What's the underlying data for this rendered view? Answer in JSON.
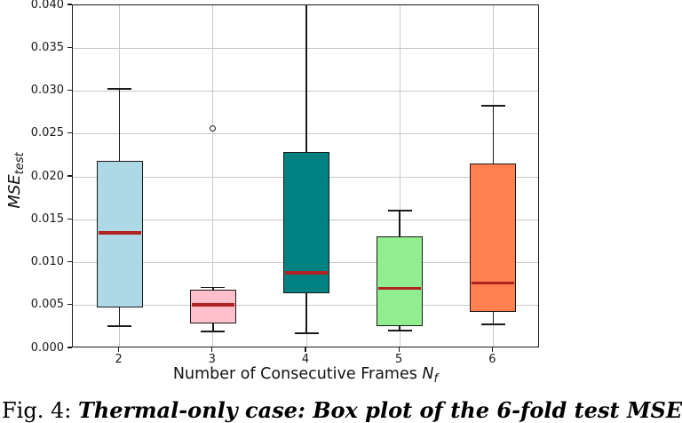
{
  "caption": {
    "prefix": "Fig. 4: ",
    "body": "Thermal-only case: Box plot of the 6-fold test MSE"
  },
  "axes": {
    "ylabel_main": "MSE",
    "ylabel_sub": "test",
    "xlabel_main": "Number of Consecutive Frames ",
    "xlabel_var": "N",
    "xlabel_var_sub": "f"
  },
  "chart_data": {
    "type": "boxplot",
    "title": "",
    "xlabel": "Number of Consecutive Frames N_f",
    "ylabel": "MSE_test",
    "ylim": [
      0.0,
      0.04
    ],
    "grid": true,
    "ytick_labels": [
      "0.000",
      "0.005",
      "0.010",
      "0.015",
      "0.020",
      "0.025",
      "0.030",
      "0.035",
      "0.040"
    ],
    "ytick_values": [
      0.0,
      0.005,
      0.01,
      0.015,
      0.02,
      0.025,
      0.03,
      0.035,
      0.04
    ],
    "categories": [
      "2",
      "3",
      "4",
      "5",
      "6"
    ],
    "grid_color": "#c9c9c9",
    "median_color": "#b22222",
    "box_edge_color": "#1a1a1a",
    "boxes": [
      {
        "category": "2",
        "color": "#add8e6",
        "whisker_low": 0.0026,
        "q1": 0.0048,
        "median": 0.0135,
        "q3": 0.0219,
        "whisker_high": 0.0303,
        "clipped_high": false,
        "outliers": []
      },
      {
        "category": "3",
        "color": "#ffc0cb",
        "whisker_low": 0.002,
        "q1": 0.0029,
        "median": 0.0051,
        "q3": 0.0068,
        "whisker_high": 0.0071,
        "clipped_high": false,
        "outliers": [
          0.0256
        ]
      },
      {
        "category": "4",
        "color": "#008080",
        "whisker_low": 0.0018,
        "q1": 0.0064,
        "median": 0.0088,
        "q3": 0.0229,
        "whisker_high": 0.04,
        "clipped_high": true,
        "outliers": []
      },
      {
        "category": "5",
        "color": "#90ee90",
        "whisker_low": 0.0021,
        "q1": 0.0026,
        "median": 0.007,
        "q3": 0.0131,
        "whisker_high": 0.0161,
        "clipped_high": false,
        "outliers": []
      },
      {
        "category": "6",
        "color": "#ff7f50",
        "whisker_low": 0.0028,
        "q1": 0.0042,
        "median": 0.0076,
        "q3": 0.0216,
        "whisker_high": 0.0283,
        "clipped_high": false,
        "outliers": []
      }
    ]
  }
}
